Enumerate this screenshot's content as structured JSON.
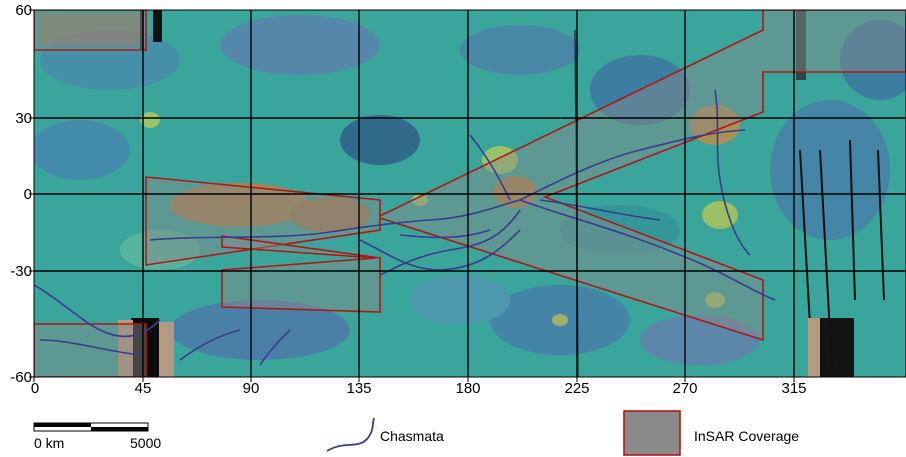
{
  "map": {
    "x_ticks": [
      "0",
      "45",
      "90",
      "135",
      "180",
      "225",
      "270",
      "315"
    ],
    "y_ticks": [
      "60",
      "30",
      "0",
      "-30",
      "-60"
    ],
    "colors": {
      "base": "#3aa59a",
      "grid": "#000000",
      "chasmata": "#3a3c8f",
      "insar_fill": "#8a8a8a",
      "insar_border": "#b01818",
      "highland": "#c77a3a"
    }
  },
  "legend": {
    "scale_start": "0 km",
    "scale_end": "5000",
    "chasmata_label": "Chasmata",
    "insar_label": "InSAR Coverage"
  }
}
